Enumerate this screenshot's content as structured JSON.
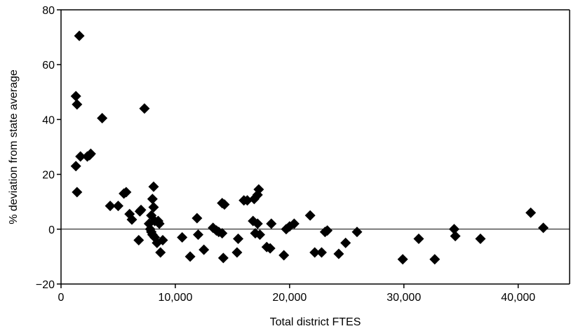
{
  "chart_data": {
    "type": "scatter",
    "title": "",
    "xlabel": "Total district FTES",
    "ylabel": "% deviation from state average",
    "xlim": [
      0,
      44500
    ],
    "ylim": [
      -20,
      80
    ],
    "x_ticks": [
      0,
      10000,
      20000,
      30000,
      40000
    ],
    "x_tick_labels": [
      "0",
      "10,000",
      "20,000",
      "30,000",
      "40,000"
    ],
    "y_ticks": [
      -20,
      0,
      20,
      40,
      60,
      80
    ],
    "y_tick_labels": [
      "−20",
      "0",
      "20",
      "40",
      "60",
      "80"
    ],
    "reference_line_y": 0,
    "grid": false,
    "marker": "diamond",
    "marker_color": "#000000",
    "x": [
      1600,
      1300,
      1400,
      3600,
      7300,
      1700,
      2600,
      2300,
      2500,
      1300,
      1400,
      4300,
      5000,
      5500,
      5700,
      6000,
      6200,
      6900,
      7000,
      6800,
      8100,
      8000,
      7900,
      8100,
      8200,
      7700,
      7800,
      7900,
      8000,
      8200,
      8400,
      8500,
      8600,
      8700,
      8900,
      10600,
      11300,
      11900,
      12000,
      12500,
      13300,
      13600,
      13800,
      14100,
      14200,
      14300,
      14100,
      15400,
      15500,
      16000,
      16300,
      16800,
      16900,
      17000,
      17200,
      17300,
      17400,
      17200,
      18000,
      18300,
      18400,
      19500,
      19700,
      20000,
      20400,
      21800,
      22200,
      22800,
      23100,
      23300,
      24300,
      24900,
      25900,
      29900,
      31300,
      32700,
      34400,
      34500,
      36700,
      41100,
      42200
    ],
    "y": [
      70.5,
      48.5,
      45.5,
      40.5,
      44,
      26.5,
      27.5,
      26.5,
      27,
      23,
      13.5,
      8.5,
      8.5,
      13,
      13.5,
      5.5,
      3.5,
      6.5,
      7,
      -4,
      15.5,
      11,
      5,
      8,
      3,
      2,
      0,
      -1,
      -2,
      -3,
      -5,
      3,
      2,
      -8.5,
      -4,
      -3,
      -10,
      4,
      -2,
      -7.5,
      0.5,
      -0.5,
      -1,
      -1.5,
      -10.5,
      9,
      9.5,
      -8.5,
      -3.5,
      10.5,
      10.5,
      3,
      11,
      -1.5,
      12.5,
      14.5,
      -2,
      2,
      -6.5,
      -7,
      2,
      -9.5,
      0,
      1,
      2,
      5,
      -8.5,
      -8.5,
      -1,
      -0.5,
      -9,
      -5,
      -1,
      -11,
      -3.5,
      -11,
      0,
      -2.5,
      -3.5,
      6,
      0.5
    ]
  }
}
